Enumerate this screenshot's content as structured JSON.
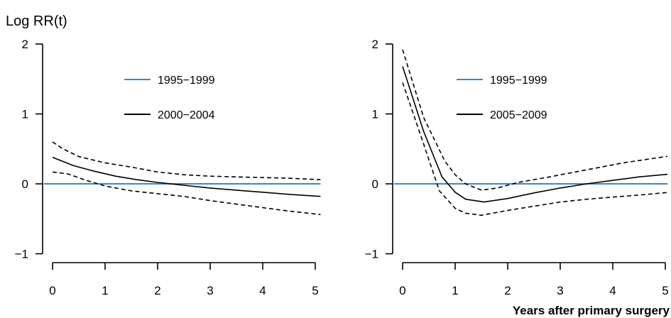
{
  "figure": {
    "ylabel": "Log RR(t)",
    "xlabel": "Years after primary surgery"
  },
  "chart_data": [
    {
      "type": "line",
      "xlim": [
        0,
        5
      ],
      "ylim": [
        -1,
        2
      ],
      "xticks": [
        "0",
        "1",
        "2",
        "3",
        "4",
        "5"
      ],
      "yticks": [
        "−1",
        "0",
        "1",
        "2"
      ],
      "legend_position": "top-center",
      "series": [
        {
          "name": "1995−1999",
          "color": "#3a87c8",
          "style": "solid",
          "x": [
            -0.15,
            5.1
          ],
          "y": [
            0,
            0
          ]
        },
        {
          "name": "2000−2004",
          "color": "#000000",
          "style": "solid",
          "x": [
            0,
            0.4,
            0.8,
            1.2,
            1.6,
            2.0,
            2.5,
            3.0,
            3.5,
            4.0,
            4.5,
            5.1
          ],
          "y": [
            0.38,
            0.26,
            0.18,
            0.11,
            0.06,
            0.02,
            -0.02,
            -0.06,
            -0.09,
            -0.12,
            -0.15,
            -0.18
          ]
        },
        {
          "name": "",
          "color": "#000000",
          "style": "dashed",
          "x": [
            0,
            0.2,
            0.5,
            1.0,
            1.5,
            2.0,
            2.5,
            3.0,
            3.5,
            4.0,
            4.5,
            5.1
          ],
          "y": [
            0.6,
            0.5,
            0.39,
            0.3,
            0.24,
            0.17,
            0.13,
            0.11,
            0.1,
            0.09,
            0.08,
            0.06
          ]
        },
        {
          "name": "",
          "color": "#000000",
          "style": "dashed",
          "x": [
            0,
            0.3,
            0.6,
            1.0,
            1.5,
            2.0,
            2.5,
            3.0,
            3.5,
            4.0,
            4.5,
            5.1
          ],
          "y": [
            0.17,
            0.14,
            0.06,
            -0.03,
            -0.1,
            -0.14,
            -0.18,
            -0.24,
            -0.29,
            -0.34,
            -0.39,
            -0.44
          ]
        }
      ]
    },
    {
      "type": "line",
      "xlim": [
        0,
        5
      ],
      "ylim": [
        -1,
        2
      ],
      "xticks": [
        "0",
        "1",
        "2",
        "3",
        "4",
        "5"
      ],
      "yticks": [
        "−1",
        "0",
        "1",
        "2"
      ],
      "legend_position": "top-center",
      "series": [
        {
          "name": "1995−1999",
          "color": "#3a87c8",
          "style": "solid",
          "x": [
            -0.15,
            5.1
          ],
          "y": [
            0,
            0
          ]
        },
        {
          "name": "2005−2009",
          "color": "#000000",
          "style": "solid",
          "x": [
            0,
            0.4,
            0.75,
            1.0,
            1.2,
            1.55,
            2.0,
            2.5,
            3.0,
            3.5,
            4.0,
            4.5,
            5.1
          ],
          "y": [
            1.68,
            0.75,
            0.1,
            -0.12,
            -0.22,
            -0.26,
            -0.21,
            -0.13,
            -0.06,
            0.0,
            0.05,
            0.1,
            0.14
          ]
        },
        {
          "name": "",
          "color": "#000000",
          "style": "dashed",
          "x": [
            0,
            0.4,
            0.8,
            1.0,
            1.2,
            1.5,
            1.8,
            2.2,
            2.8,
            3.5,
            4.2,
            5.1
          ],
          "y": [
            1.92,
            0.95,
            0.33,
            0.13,
            0.0,
            -0.09,
            -0.06,
            0.02,
            0.1,
            0.2,
            0.3,
            0.4
          ]
        },
        {
          "name": "",
          "color": "#000000",
          "style": "dashed",
          "x": [
            0,
            0.4,
            0.7,
            1.0,
            1.2,
            1.5,
            2.0,
            2.5,
            3.0,
            3.5,
            4.0,
            4.5,
            5.1
          ],
          "y": [
            1.45,
            0.57,
            -0.1,
            -0.35,
            -0.42,
            -0.45,
            -0.38,
            -0.32,
            -0.26,
            -0.22,
            -0.19,
            -0.16,
            -0.12
          ]
        }
      ]
    }
  ]
}
